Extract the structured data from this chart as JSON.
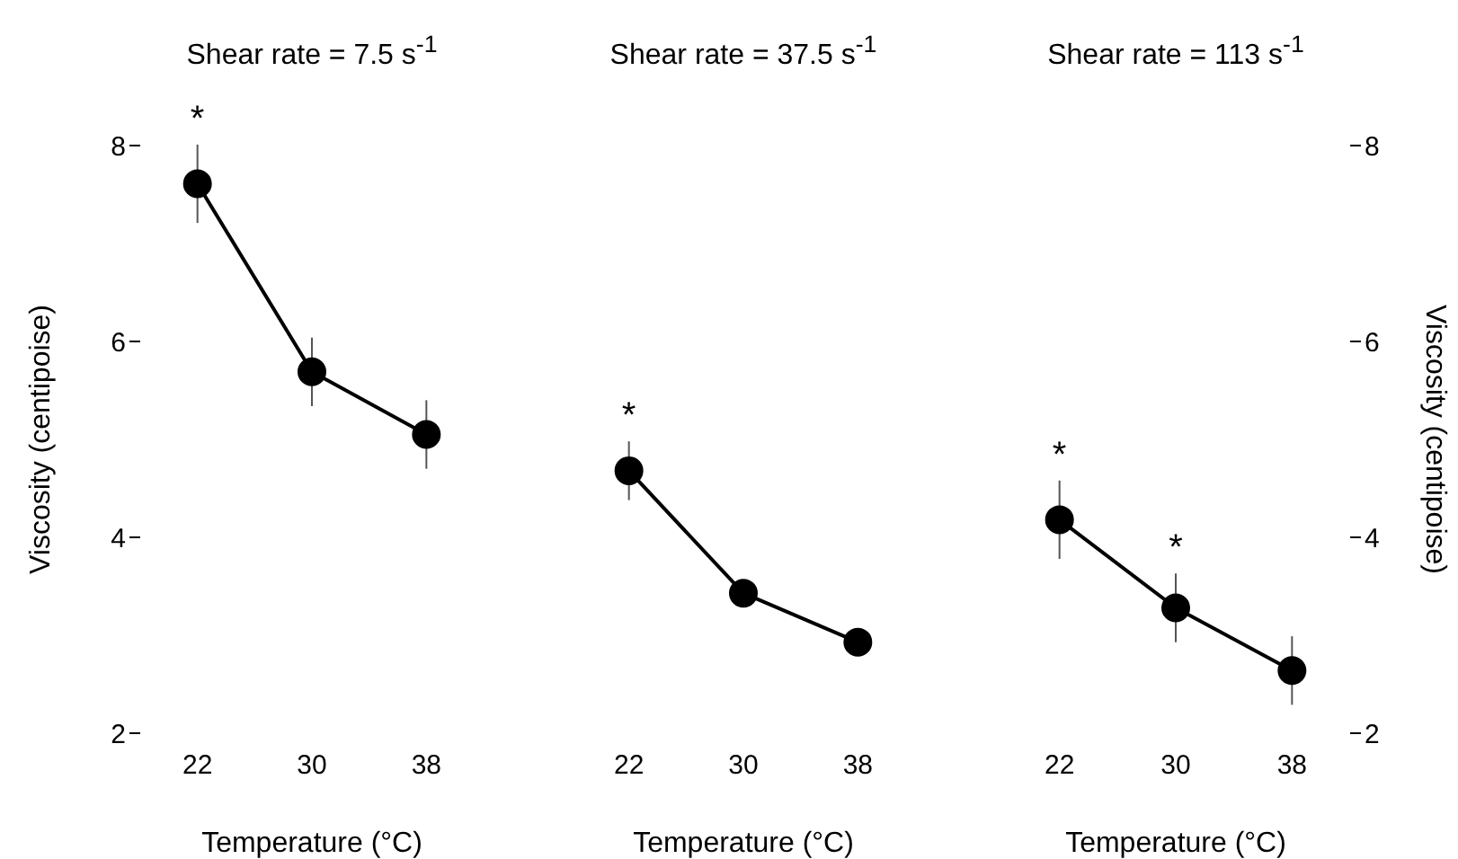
{
  "chart_data": [
    {
      "type": "line",
      "title": "Shear rate = 7.5 s$^{-1}$",
      "xlabel": "Temperature (°C)",
      "ylabel": "Viscosity (centipoise)",
      "categories": [
        "22",
        "30",
        "38"
      ],
      "ylim": [
        2,
        8
      ],
      "yticks": [
        2,
        4,
        6,
        8
      ],
      "marker": "circle",
      "grid": false,
      "legend": false,
      "series": [
        {
          "color": "#000000",
          "values": [
            7.61,
            5.69,
            5.05
          ],
          "errors": [
            0.4,
            0.35,
            0.35
          ]
        }
      ],
      "annotations": [
        {
          "text": "*",
          "x": "22",
          "y": 7.61
        }
      ]
    },
    {
      "type": "line",
      "title": "Shear rate = 37.5 s$^{-1}$",
      "xlabel": "Temperature (°C)",
      "categories": [
        "22",
        "30",
        "38"
      ],
      "ylim": [
        2,
        8
      ],
      "yticks": [
        2,
        4,
        6,
        8
      ],
      "tick_labels": "x",
      "marker": "circle",
      "grid": false,
      "legend": false,
      "series": [
        {
          "color": "#000000",
          "values": [
            4.68,
            3.43,
            2.93
          ],
          "errors": [
            0.3,
            null,
            null
          ]
        }
      ],
      "annotations": [
        {
          "text": "*",
          "x": "22",
          "y": 4.68
        }
      ]
    },
    {
      "type": "line",
      "title": "Shear rate = 113 s$^{-1}$",
      "xlabel": "Temperature (°C)",
      "ylabel": "Viscosity (centipoise)",
      "categories": [
        "22",
        "30",
        "38"
      ],
      "ylim": [
        2,
        8
      ],
      "yticks": [
        2,
        4,
        6,
        8
      ],
      "marker": "circle",
      "grid": false,
      "legend": false,
      "series": [
        {
          "color": "#000000",
          "values": [
            4.18,
            3.28,
            2.64
          ],
          "errors": [
            0.4,
            0.35,
            0.35
          ]
        }
      ],
      "annotations": [
        {
          "text": "*",
          "x": "22",
          "y": 4.18
        },
        {
          "text": "*",
          "x": "30",
          "y": 3.28
        }
      ]
    }
  ]
}
